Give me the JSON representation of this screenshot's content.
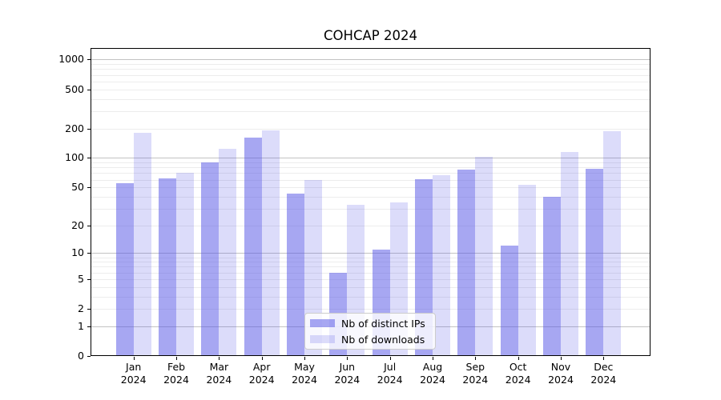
{
  "chart_data": {
    "type": "bar",
    "title": "COHCAP 2024",
    "categories": [
      "Jan",
      "Feb",
      "Mar",
      "Apr",
      "May",
      "Jun",
      "Jul",
      "Aug",
      "Sep",
      "Oct",
      "Nov",
      "Dec"
    ],
    "x_year_label": "2024",
    "series": [
      {
        "name": "Nb of distinct IPs",
        "color": "rgba(80,80,230,0.5)",
        "values": [
          55,
          62,
          90,
          160,
          43,
          6,
          11,
          61,
          76,
          12,
          40,
          78
        ]
      },
      {
        "name": "Nb of downloads",
        "color": "rgba(80,80,230,0.2)",
        "values": [
          180,
          70,
          125,
          190,
          59,
          33,
          35,
          67,
          103,
          53,
          115,
          188
        ]
      }
    ],
    "y_ticks": [
      0,
      1,
      2,
      5,
      10,
      20,
      50,
      100,
      200,
      500,
      1000
    ],
    "y_scale": "log10(1+x)",
    "ylim": [
      0,
      1300
    ],
    "grid": {
      "major_values": [
        1,
        10,
        100,
        1000
      ],
      "major_color": "#c2c2c2",
      "minor_color": "#ececec"
    },
    "legend": {
      "position": "lower center"
    }
  }
}
